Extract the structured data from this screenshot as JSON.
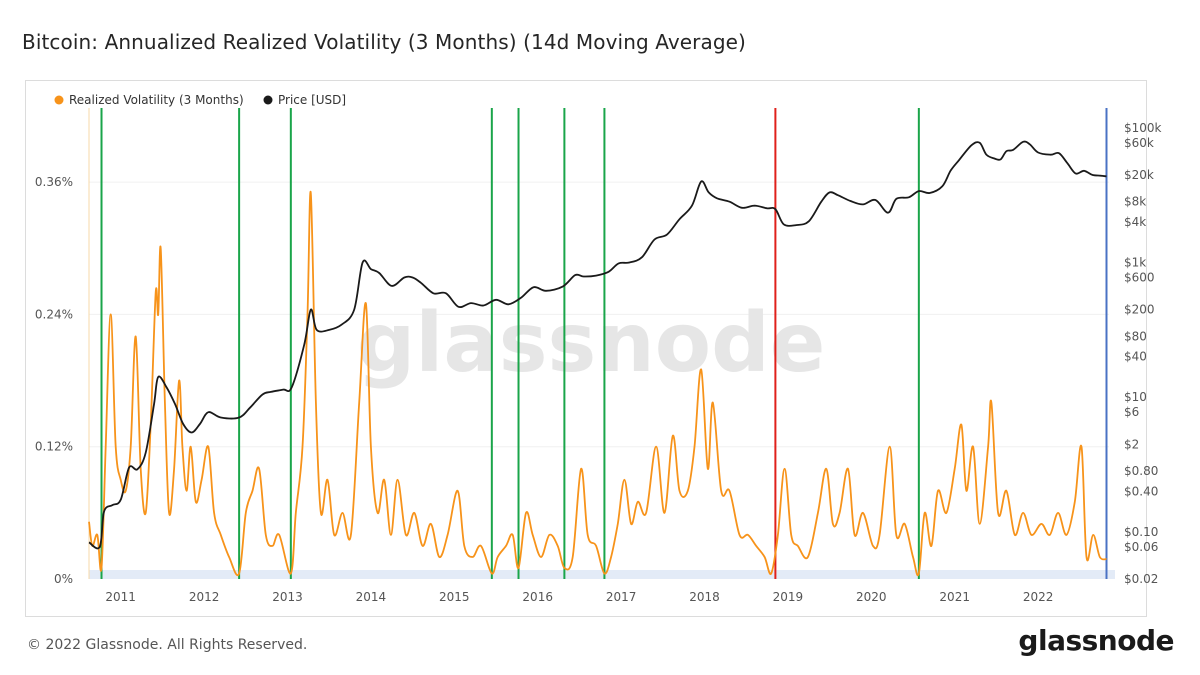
{
  "title": "Bitcoin: Annualized Realized Volatility (3 Months) (14d Moving Average)",
  "footer": {
    "copyright": "© 2022 Glassnode. All Rights Reserved.",
    "brand": "glassnode"
  },
  "watermark": "glassnode",
  "colors": {
    "volatility": "#f7931a",
    "price": "#1a1a1a",
    "green_line": "#1aa54a",
    "red_line": "#e0201b",
    "blue_line": "#4a72c4",
    "band": "#e3ebf7"
  },
  "chart_data": {
    "type": "line",
    "title": "Bitcoin: Annualized Realized Volatility (3 Months) (14d Moving Average)",
    "x_range": [
      2010.62,
      2022.85
    ],
    "x_ticks": [
      "2011",
      "2012",
      "2013",
      "2014",
      "2015",
      "2016",
      "2017",
      "2018",
      "2019",
      "2020",
      "2021",
      "2022"
    ],
    "y_left": {
      "range": [
        0,
        0.42
      ],
      "ticks": [
        0,
        0.12,
        0.24,
        0.36
      ],
      "tick_labels": [
        "0%",
        "0.12%",
        "0.24%",
        "0.36%"
      ]
    },
    "y_right": {
      "scale": "log",
      "range": [
        0.02,
        150000
      ],
      "ticks": [
        0.02,
        0.06,
        0.1,
        0.4,
        0.8,
        2,
        6,
        10,
        40,
        80,
        200,
        600,
        1000,
        4000,
        8000,
        20000,
        60000,
        100000
      ],
      "tick_labels": [
        "$0.02",
        "$0.06",
        "$0.10",
        "$0.40",
        "$0.80",
        "$2",
        "$6",
        "$10",
        "$40",
        "$80",
        "$200",
        "$600",
        "$1k",
        "$4k",
        "$8k",
        "$20k",
        "$60k",
        "$100k"
      ]
    },
    "legend": [
      {
        "name": "Realized Volatility (3 Months)",
        "color": "#f7931a"
      },
      {
        "name": "Price [USD]",
        "color": "#1a1a1a"
      }
    ],
    "vertical_markers": [
      {
        "x": 2010.77,
        "color": "green"
      },
      {
        "x": 2012.42,
        "color": "green"
      },
      {
        "x": 2013.04,
        "color": "green"
      },
      {
        "x": 2015.45,
        "color": "green"
      },
      {
        "x": 2015.77,
        "color": "green"
      },
      {
        "x": 2016.32,
        "color": "green"
      },
      {
        "x": 2016.8,
        "color": "green"
      },
      {
        "x": 2018.85,
        "color": "red"
      },
      {
        "x": 2020.57,
        "color": "green"
      },
      {
        "x": 2022.82,
        "color": "blue"
      }
    ],
    "series": [
      {
        "name": "Realized Volatility (3 Months)",
        "axis": "left",
        "points": [
          [
            2010.62,
            0.052
          ],
          [
            2010.66,
            0.03
          ],
          [
            2010.72,
            0.04
          ],
          [
            2010.77,
            0.01
          ],
          [
            2010.82,
            0.12
          ],
          [
            2010.88,
            0.24
          ],
          [
            2010.94,
            0.12
          ],
          [
            2011.0,
            0.09
          ],
          [
            2011.06,
            0.08
          ],
          [
            2011.12,
            0.12
          ],
          [
            2011.18,
            0.22
          ],
          [
            2011.24,
            0.1
          ],
          [
            2011.3,
            0.06
          ],
          [
            2011.36,
            0.14
          ],
          [
            2011.42,
            0.26
          ],
          [
            2011.45,
            0.24
          ],
          [
            2011.48,
            0.3
          ],
          [
            2011.53,
            0.16
          ],
          [
            2011.58,
            0.06
          ],
          [
            2011.64,
            0.1
          ],
          [
            2011.7,
            0.18
          ],
          [
            2011.74,
            0.12
          ],
          [
            2011.79,
            0.08
          ],
          [
            2011.84,
            0.12
          ],
          [
            2011.9,
            0.07
          ],
          [
            2011.97,
            0.09
          ],
          [
            2012.05,
            0.12
          ],
          [
            2012.12,
            0.06
          ],
          [
            2012.2,
            0.04
          ],
          [
            2012.3,
            0.02
          ],
          [
            2012.42,
            0.005
          ],
          [
            2012.5,
            0.06
          ],
          [
            2012.58,
            0.08
          ],
          [
            2012.66,
            0.1
          ],
          [
            2012.74,
            0.04
          ],
          [
            2012.82,
            0.03
          ],
          [
            2012.9,
            0.04
          ],
          [
            2013.04,
            0.005
          ],
          [
            2013.1,
            0.06
          ],
          [
            2013.18,
            0.12
          ],
          [
            2013.24,
            0.24
          ],
          [
            2013.28,
            0.35
          ],
          [
            2013.34,
            0.16
          ],
          [
            2013.4,
            0.06
          ],
          [
            2013.48,
            0.09
          ],
          [
            2013.56,
            0.04
          ],
          [
            2013.66,
            0.06
          ],
          [
            2013.76,
            0.04
          ],
          [
            2013.86,
            0.16
          ],
          [
            2013.94,
            0.25
          ],
          [
            2014.0,
            0.12
          ],
          [
            2014.08,
            0.06
          ],
          [
            2014.16,
            0.09
          ],
          [
            2014.24,
            0.04
          ],
          [
            2014.32,
            0.09
          ],
          [
            2014.42,
            0.04
          ],
          [
            2014.52,
            0.06
          ],
          [
            2014.62,
            0.03
          ],
          [
            2014.72,
            0.05
          ],
          [
            2014.82,
            0.02
          ],
          [
            2014.92,
            0.04
          ],
          [
            2015.04,
            0.08
          ],
          [
            2015.12,
            0.03
          ],
          [
            2015.22,
            0.02
          ],
          [
            2015.32,
            0.03
          ],
          [
            2015.45,
            0.005
          ],
          [
            2015.52,
            0.02
          ],
          [
            2015.62,
            0.03
          ],
          [
            2015.7,
            0.04
          ],
          [
            2015.77,
            0.01
          ],
          [
            2015.86,
            0.06
          ],
          [
            2015.94,
            0.04
          ],
          [
            2016.04,
            0.02
          ],
          [
            2016.14,
            0.04
          ],
          [
            2016.24,
            0.03
          ],
          [
            2016.32,
            0.01
          ],
          [
            2016.42,
            0.02
          ],
          [
            2016.52,
            0.1
          ],
          [
            2016.6,
            0.04
          ],
          [
            2016.7,
            0.03
          ],
          [
            2016.8,
            0.005
          ],
          [
            2016.88,
            0.02
          ],
          [
            2016.96,
            0.05
          ],
          [
            2017.04,
            0.09
          ],
          [
            2017.12,
            0.05
          ],
          [
            2017.2,
            0.07
          ],
          [
            2017.3,
            0.06
          ],
          [
            2017.42,
            0.12
          ],
          [
            2017.52,
            0.06
          ],
          [
            2017.62,
            0.13
          ],
          [
            2017.7,
            0.08
          ],
          [
            2017.8,
            0.08
          ],
          [
            2017.88,
            0.12
          ],
          [
            2017.96,
            0.19
          ],
          [
            2018.04,
            0.1
          ],
          [
            2018.1,
            0.16
          ],
          [
            2018.2,
            0.08
          ],
          [
            2018.3,
            0.08
          ],
          [
            2018.42,
            0.04
          ],
          [
            2018.52,
            0.04
          ],
          [
            2018.62,
            0.03
          ],
          [
            2018.72,
            0.02
          ],
          [
            2018.8,
            0.005
          ],
          [
            2018.88,
            0.04
          ],
          [
            2018.96,
            0.1
          ],
          [
            2019.04,
            0.04
          ],
          [
            2019.12,
            0.03
          ],
          [
            2019.24,
            0.02
          ],
          [
            2019.36,
            0.06
          ],
          [
            2019.46,
            0.1
          ],
          [
            2019.54,
            0.05
          ],
          [
            2019.62,
            0.06
          ],
          [
            2019.72,
            0.1
          ],
          [
            2019.8,
            0.04
          ],
          [
            2019.9,
            0.06
          ],
          [
            2020.02,
            0.03
          ],
          [
            2020.1,
            0.04
          ],
          [
            2020.22,
            0.12
          ],
          [
            2020.3,
            0.04
          ],
          [
            2020.4,
            0.05
          ],
          [
            2020.5,
            0.02
          ],
          [
            2020.57,
            0.005
          ],
          [
            2020.64,
            0.06
          ],
          [
            2020.72,
            0.03
          ],
          [
            2020.8,
            0.08
          ],
          [
            2020.9,
            0.06
          ],
          [
            2021.0,
            0.1
          ],
          [
            2021.08,
            0.14
          ],
          [
            2021.14,
            0.08
          ],
          [
            2021.22,
            0.12
          ],
          [
            2021.3,
            0.05
          ],
          [
            2021.4,
            0.12
          ],
          [
            2021.44,
            0.16
          ],
          [
            2021.52,
            0.06
          ],
          [
            2021.62,
            0.08
          ],
          [
            2021.72,
            0.04
          ],
          [
            2021.82,
            0.06
          ],
          [
            2021.92,
            0.04
          ],
          [
            2022.04,
            0.05
          ],
          [
            2022.14,
            0.04
          ],
          [
            2022.24,
            0.06
          ],
          [
            2022.34,
            0.04
          ],
          [
            2022.44,
            0.07
          ],
          [
            2022.52,
            0.12
          ],
          [
            2022.58,
            0.02
          ],
          [
            2022.66,
            0.04
          ],
          [
            2022.74,
            0.02
          ],
          [
            2022.82,
            0.018
          ]
        ]
      },
      {
        "name": "Price [USD]",
        "axis": "right",
        "points": [
          [
            2010.62,
            0.07
          ],
          [
            2010.75,
            0.06
          ],
          [
            2010.8,
            0.2
          ],
          [
            2010.9,
            0.25
          ],
          [
            2011.0,
            0.3
          ],
          [
            2011.1,
            0.9
          ],
          [
            2011.2,
            0.85
          ],
          [
            2011.3,
            1.5
          ],
          [
            2011.4,
            8
          ],
          [
            2011.45,
            20
          ],
          [
            2011.55,
            14
          ],
          [
            2011.65,
            8
          ],
          [
            2011.75,
            4
          ],
          [
            2011.85,
            3
          ],
          [
            2011.95,
            4
          ],
          [
            2012.05,
            6
          ],
          [
            2012.2,
            5
          ],
          [
            2012.42,
            5
          ],
          [
            2012.55,
            7
          ],
          [
            2012.7,
            11
          ],
          [
            2012.8,
            12
          ],
          [
            2012.95,
            13
          ],
          [
            2013.05,
            14
          ],
          [
            2013.2,
            60
          ],
          [
            2013.28,
            200
          ],
          [
            2013.35,
            100
          ],
          [
            2013.5,
            100
          ],
          [
            2013.65,
            120
          ],
          [
            2013.8,
            200
          ],
          [
            2013.9,
            1000
          ],
          [
            2014.0,
            800
          ],
          [
            2014.1,
            700
          ],
          [
            2014.25,
            450
          ],
          [
            2014.4,
            600
          ],
          [
            2014.5,
            600
          ],
          [
            2014.6,
            500
          ],
          [
            2014.75,
            350
          ],
          [
            2014.9,
            350
          ],
          [
            2015.05,
            220
          ],
          [
            2015.2,
            250
          ],
          [
            2015.35,
            230
          ],
          [
            2015.5,
            280
          ],
          [
            2015.65,
            240
          ],
          [
            2015.8,
            300
          ],
          [
            2015.95,
            430
          ],
          [
            2016.1,
            380
          ],
          [
            2016.3,
            440
          ],
          [
            2016.45,
            650
          ],
          [
            2016.55,
            620
          ],
          [
            2016.7,
            640
          ],
          [
            2016.85,
            730
          ],
          [
            2016.97,
            970
          ],
          [
            2017.1,
            1000
          ],
          [
            2017.25,
            1200
          ],
          [
            2017.4,
            2200
          ],
          [
            2017.55,
            2600
          ],
          [
            2017.7,
            4400
          ],
          [
            2017.85,
            7000
          ],
          [
            2017.96,
            16000
          ],
          [
            2018.05,
            11000
          ],
          [
            2018.15,
            9000
          ],
          [
            2018.3,
            8000
          ],
          [
            2018.45,
            6500
          ],
          [
            2018.6,
            7000
          ],
          [
            2018.75,
            6400
          ],
          [
            2018.85,
            6200
          ],
          [
            2018.95,
            3700
          ],
          [
            2019.1,
            3600
          ],
          [
            2019.25,
            4100
          ],
          [
            2019.4,
            8000
          ],
          [
            2019.5,
            11000
          ],
          [
            2019.6,
            10000
          ],
          [
            2019.75,
            8200
          ],
          [
            2019.9,
            7300
          ],
          [
            2020.05,
            8500
          ],
          [
            2020.2,
            5500
          ],
          [
            2020.3,
            8800
          ],
          [
            2020.45,
            9300
          ],
          [
            2020.57,
            11500
          ],
          [
            2020.7,
            10800
          ],
          [
            2020.85,
            13500
          ],
          [
            2020.95,
            23000
          ],
          [
            2021.05,
            33000
          ],
          [
            2021.2,
            55000
          ],
          [
            2021.3,
            60000
          ],
          [
            2021.38,
            40000
          ],
          [
            2021.48,
            35000
          ],
          [
            2021.55,
            34000
          ],
          [
            2021.62,
            45000
          ],
          [
            2021.7,
            47000
          ],
          [
            2021.82,
            62000
          ],
          [
            2021.9,
            57000
          ],
          [
            2022.0,
            43000
          ],
          [
            2022.15,
            40000
          ],
          [
            2022.25,
            42000
          ],
          [
            2022.35,
            30000
          ],
          [
            2022.45,
            21000
          ],
          [
            2022.55,
            23000
          ],
          [
            2022.65,
            20000
          ],
          [
            2022.75,
            19500
          ],
          [
            2022.82,
            19000
          ]
        ]
      }
    ]
  }
}
